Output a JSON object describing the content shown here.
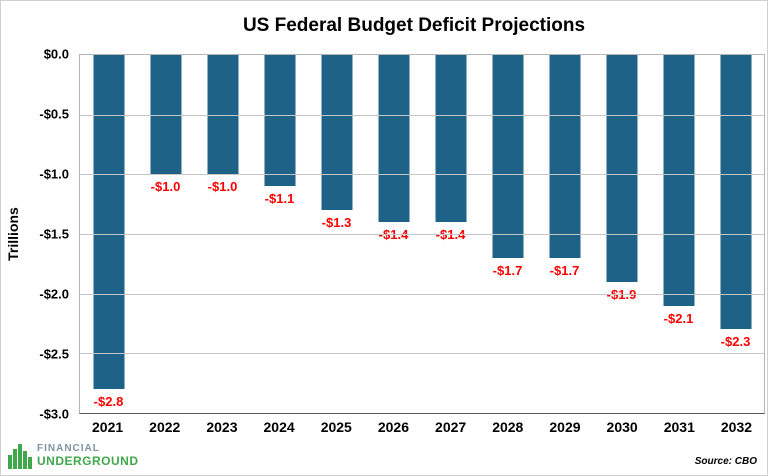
{
  "chart_data": {
    "type": "bar",
    "title": "US Federal Budget Deficit Projections",
    "ylabel": "Trillions",
    "xlabel": "",
    "categories": [
      "2021",
      "2022",
      "2023",
      "2024",
      "2025",
      "2026",
      "2027",
      "2028",
      "2029",
      "2030",
      "2031",
      "2032"
    ],
    "values": [
      -2.8,
      -1.0,
      -1.0,
      -1.1,
      -1.3,
      -1.4,
      -1.4,
      -1.7,
      -1.7,
      -1.9,
      -2.1,
      -2.3
    ],
    "data_labels": [
      "-$2.8",
      "-$1.0",
      "-$1.0",
      "-$1.1",
      "-$1.3",
      "-$1.4",
      "-$1.4",
      "-$1.7",
      "-$1.7",
      "-$1.9",
      "-$2.1",
      "-$2.3"
    ],
    "ylim": [
      -3.0,
      0.0
    ],
    "yticks": [
      0.0,
      -0.5,
      -1.0,
      -1.5,
      -2.0,
      -2.5,
      -3.0
    ],
    "ytick_labels": [
      "$0.0",
      "-$0.5",
      "-$1.0",
      "-$1.5",
      "-$2.0",
      "-$2.5",
      "-$3.0"
    ],
    "grid": true,
    "legend": false,
    "bar_color": "#1f6287",
    "label_color": "#ff0000"
  },
  "footer": {
    "logo_line1": "FINANCIAL",
    "logo_line2": "UNDERGROUND",
    "logo_color": "#3fa84c",
    "source": "Source: CBO"
  }
}
